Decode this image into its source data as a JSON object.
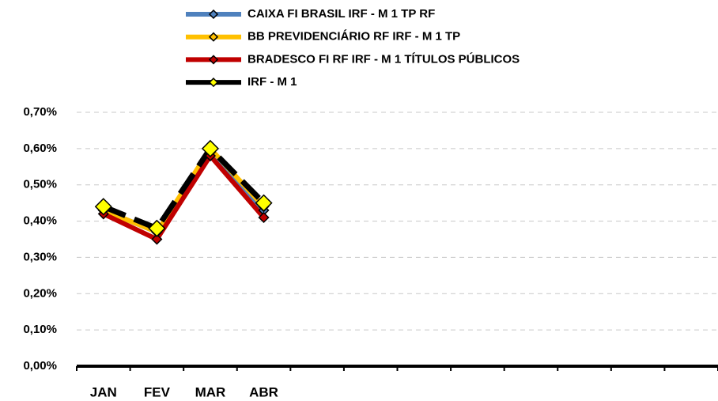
{
  "chart_data": {
    "type": "line",
    "categories": [
      "JAN",
      "FEV",
      "MAR",
      "ABR",
      null,
      null,
      null,
      null,
      null,
      null,
      null,
      null
    ],
    "series": [
      {
        "name": "CAIXA FI BRASIL IRF - M 1 TP RF",
        "color": "#4f81bd",
        "marker_color": "#4f81bd",
        "values": [
          0.43,
          0.37,
          0.59,
          0.43,
          null,
          null,
          null,
          null,
          null,
          null,
          null,
          null
        ]
      },
      {
        "name": "BB PREVIDENCIÁRIO RF IRF - M 1 TP",
        "color": "#ffc000",
        "marker_color": "#ffc000",
        "values": [
          0.43,
          0.37,
          0.6,
          0.44,
          null,
          null,
          null,
          null,
          null,
          null,
          null,
          null
        ]
      },
      {
        "name": "BRADESCO FI RF IRF - M 1 TÍTULOS PÚBLICOS",
        "color": "#c00000",
        "marker_color": "#c00000",
        "values": [
          0.42,
          0.35,
          0.58,
          0.41,
          null,
          null,
          null,
          null,
          null,
          null,
          null,
          null
        ]
      },
      {
        "name": "IRF - M 1",
        "color": "#000000",
        "marker_color": "#ffff00",
        "dashed": true,
        "values": [
          0.44,
          0.38,
          0.6,
          0.45,
          null,
          null,
          null,
          null,
          null,
          null,
          null,
          null
        ]
      }
    ],
    "ylim": [
      0,
      0.7
    ],
    "yticks": [
      {
        "value": 0,
        "label": "0,00%"
      },
      {
        "value": 0.1,
        "label": "0,10%"
      },
      {
        "value": 0.2,
        "label": "0,20%"
      },
      {
        "value": 0.3,
        "label": "0,30%"
      },
      {
        "value": 0.4,
        "label": "0,40%"
      },
      {
        "value": 0.5,
        "label": "0,50%"
      },
      {
        "value": 0.6,
        "label": "0,60%"
      },
      {
        "value": 0.7,
        "label": "0,70%"
      }
    ],
    "grid": true,
    "legend": "top"
  }
}
